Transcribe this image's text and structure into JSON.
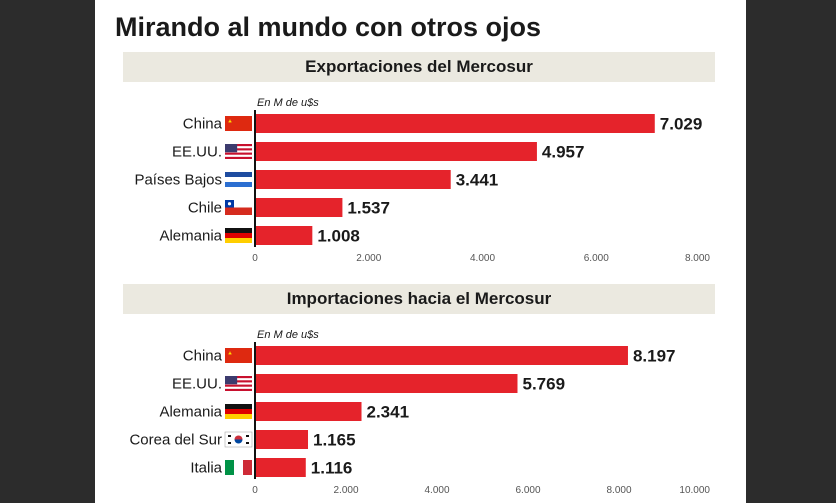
{
  "title": "Mirando al mundo con otros ojos",
  "colors": {
    "bar": "#e5232b",
    "axis": "#111111",
    "header_bg": "#ebe9e0",
    "frame": "#2c2c2c"
  },
  "chart_data": [
    {
      "type": "bar",
      "orientation": "horizontal",
      "title": "Exportaciones del Mercosur",
      "unit_label": "En M de u$s",
      "categories": [
        "China",
        "EE.UU.",
        "Países Bajos",
        "Chile",
        "Alemania"
      ],
      "values": [
        7029,
        4957,
        3441,
        1537,
        1008
      ],
      "value_labels": [
        "7.029",
        "4.957",
        "3.441",
        "1.537",
        "1.008"
      ],
      "flags": [
        "china-flag",
        "usa-flag",
        "netherlands-flag",
        "chile-flag",
        "germany-flag"
      ],
      "xlim": [
        0,
        8000
      ],
      "ticks": [
        0,
        2000,
        4000,
        6000,
        8000
      ],
      "tick_labels": [
        "0",
        "2.000",
        "4.000",
        "6.000",
        "8.000"
      ],
      "grid": false
    },
    {
      "type": "bar",
      "orientation": "horizontal",
      "title": "Importaciones hacia el Mercosur",
      "unit_label": "En M de u$s",
      "categories": [
        "China",
        "EE.UU.",
        "Alemania",
        "Corea del Sur",
        "Italia"
      ],
      "values": [
        8197,
        5769,
        2341,
        1165,
        1116
      ],
      "value_labels": [
        "8.197",
        "5.769",
        "2.341",
        "1.165",
        "1.116"
      ],
      "flags": [
        "china-flag",
        "usa-flag",
        "germany-flag",
        "south-korea-flag",
        "italy-flag"
      ],
      "xlim": [
        0,
        10000
      ],
      "ticks": [
        0,
        2000,
        4000,
        6000,
        8000,
        10000
      ],
      "tick_labels": [
        "0",
        "2.000",
        "4.000",
        "6.000",
        "8.000",
        "10.000"
      ],
      "grid": false
    }
  ]
}
